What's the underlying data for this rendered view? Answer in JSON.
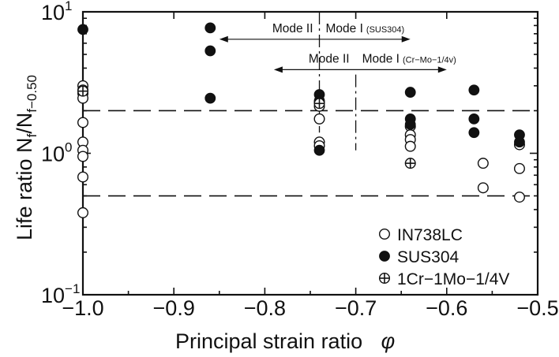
{
  "chart_data": {
    "type": "scatter",
    "xlabel": "Principal strain ratio",
    "xlabel_symbol": "φ",
    "ylabel": {
      "prefix": "Life ratio ",
      "num": "N",
      "num_sub": "f",
      "slash": "/N",
      "den_sub": "f−0.50"
    },
    "xlim": [
      -1.0,
      -0.5
    ],
    "ylim": [
      0.1,
      10
    ],
    "yscale": "log",
    "x_ticks": [
      -1.0,
      -0.9,
      -0.8,
      -0.7,
      -0.6,
      -0.5
    ],
    "x_tick_labels": [
      "−1.0",
      "−0.9",
      "−0.8",
      "−0.7",
      "−0.6",
      "−0.5"
    ],
    "y_ticks": [
      {
        "value": 0.1,
        "base": "10",
        "exp": "−1"
      },
      {
        "value": 1,
        "base": "10",
        "exp": "0"
      },
      {
        "value": 10,
        "base": "10",
        "exp": "1"
      }
    ],
    "reference_lines": [
      2,
      0.5
    ],
    "mode_boundaries": [
      {
        "x": -0.74,
        "ymin": 1.4,
        "ymax": 10
      },
      {
        "x": -0.7,
        "ymin": 1.05,
        "ymax": 3.6
      }
    ],
    "annotations": [
      {
        "left": "Mode II",
        "right": "Mode I",
        "material": "(SUS304)",
        "x_from": -0.85,
        "x_to": -0.64,
        "y": 6.4,
        "boundary": -0.74
      },
      {
        "left": "Mode II",
        "right": "Mode I",
        "material": "(Cr−Mo−1/4v)",
        "x_from": -0.79,
        "x_to": -0.6,
        "y": 3.9,
        "boundary": -0.7
      }
    ],
    "legend_position": "bottom-right",
    "series": [
      {
        "name": "IN738LC",
        "marker": "open-circle",
        "points": [
          [
            -1.0,
            3.0
          ],
          [
            -1.0,
            2.8
          ],
          [
            -1.0,
            2.65
          ],
          [
            -1.0,
            2.45
          ],
          [
            -1.0,
            1.65
          ],
          [
            -1.0,
            1.2
          ],
          [
            -1.0,
            1.05
          ],
          [
            -1.0,
            0.95
          ],
          [
            -1.0,
            0.68
          ],
          [
            -1.0,
            0.38
          ],
          [
            -0.74,
            2.3
          ],
          [
            -0.74,
            2.15
          ],
          [
            -0.74,
            1.75
          ],
          [
            -0.74,
            1.2
          ],
          [
            -0.74,
            1.13
          ],
          [
            -0.64,
            1.55
          ],
          [
            -0.64,
            1.35
          ],
          [
            -0.64,
            1.25
          ],
          [
            -0.64,
            1.12
          ],
          [
            -0.56,
            0.85
          ],
          [
            -0.56,
            0.57
          ],
          [
            -0.52,
            1.15
          ],
          [
            -0.52,
            0.78
          ],
          [
            -0.52,
            0.49
          ]
        ]
      },
      {
        "name": "SUS304",
        "marker": "filled-circle",
        "points": [
          [
            -1.0,
            7.5
          ],
          [
            -0.86,
            7.7
          ],
          [
            -0.86,
            5.3
          ],
          [
            -0.86,
            2.45
          ],
          [
            -0.74,
            2.6
          ],
          [
            -0.74,
            2.35
          ],
          [
            -0.74,
            1.05
          ],
          [
            -0.64,
            2.7
          ],
          [
            -0.64,
            1.75
          ],
          [
            -0.64,
            1.6
          ],
          [
            -0.57,
            2.8
          ],
          [
            -0.57,
            1.75
          ],
          [
            -0.57,
            1.4
          ],
          [
            -0.52,
            1.35
          ],
          [
            -0.52,
            1.2
          ]
        ]
      },
      {
        "name": "1Cr−1Mo−1/4V",
        "marker": "crossed-circle",
        "points": [
          [
            -1.0,
            2.75
          ],
          [
            -0.74,
            2.25
          ],
          [
            -0.64,
            0.85
          ]
        ]
      }
    ]
  }
}
